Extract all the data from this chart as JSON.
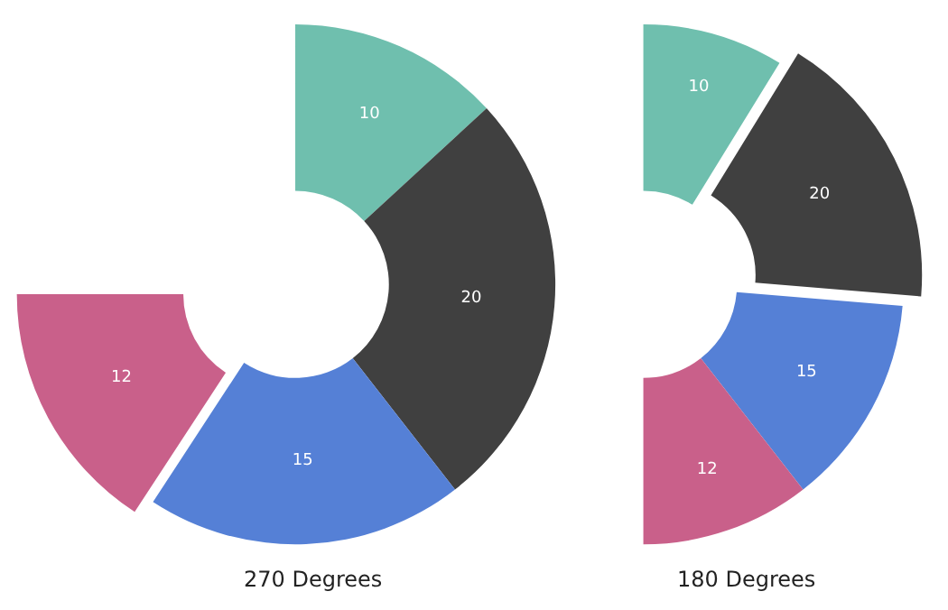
{
  "chart_data": [
    {
      "type": "donut",
      "title": "270 Degrees",
      "categories": [
        null,
        null,
        null,
        null
      ],
      "values": [
        10,
        20,
        15,
        12
      ],
      "colors": [
        "#6fbfae",
        "#404040",
        "#5580d6",
        "#c9608a"
      ],
      "data_labels": true
    },
    {
      "type": "donut",
      "title": "180 Degrees",
      "categories": [
        null,
        null,
        null,
        null
      ],
      "values": [
        10,
        20,
        15,
        12
      ],
      "colors": [
        "#6fbfae",
        "#404040",
        "#5580d6",
        "#c9608a"
      ],
      "data_labels": true
    }
  ]
}
